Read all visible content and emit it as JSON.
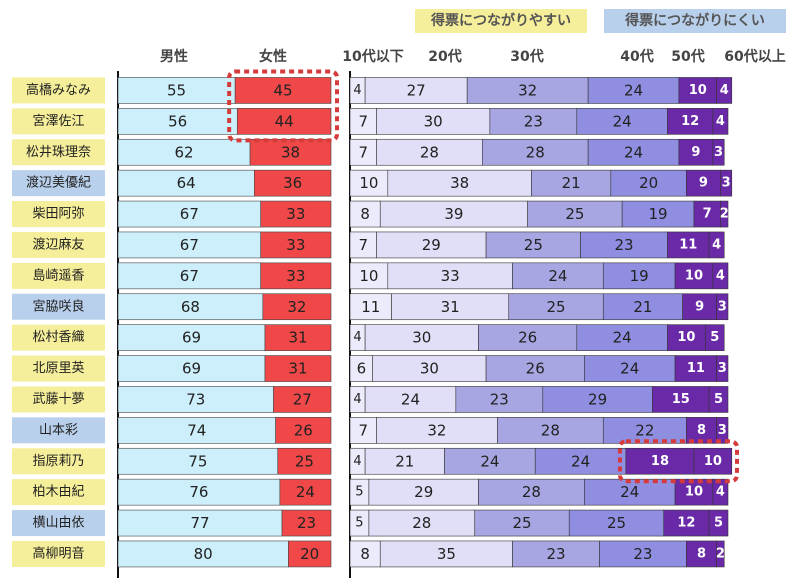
{
  "legend": {
    "easy": "得票につながりやすい",
    "hard": "得票につながりにくい",
    "colors": {
      "easy": "#f5ee9a",
      "hard": "#b8d0ec"
    }
  },
  "chart_data": {
    "type": "bar",
    "gender_headers": [
      "男性",
      "女性"
    ],
    "age_headers": [
      "10代以下",
      "20代",
      "30代",
      "40代",
      "50代",
      "60代以上"
    ],
    "categories": [
      "高橋みなみ",
      "宮澤佐江",
      "松井珠理奈",
      "渡辺美優紀",
      "柴田阿弥",
      "渡辺麻友",
      "島崎遥香",
      "宮脇咲良",
      "松村香織",
      "北原里英",
      "武藤十夢",
      "山本彩",
      "指原莉乃",
      "柏木由紀",
      "横山由依",
      "高柳明音"
    ],
    "name_highlight": [
      "easy",
      "easy",
      "easy",
      "hard",
      "easy",
      "easy",
      "easy",
      "hard",
      "easy",
      "easy",
      "easy",
      "hard",
      "easy",
      "easy",
      "hard",
      "easy"
    ],
    "gender_series": [
      {
        "name": "男性",
        "values": [
          55,
          56,
          62,
          64,
          67,
          67,
          67,
          68,
          69,
          69,
          73,
          74,
          75,
          76,
          77,
          80
        ]
      },
      {
        "name": "女性",
        "values": [
          45,
          44,
          38,
          36,
          33,
          33,
          33,
          32,
          31,
          31,
          27,
          26,
          25,
          24,
          23,
          20
        ]
      }
    ],
    "age_series": [
      {
        "name": "10代以下",
        "values": [
          4,
          7,
          7,
          10,
          8,
          7,
          10,
          11,
          4,
          6,
          4,
          7,
          4,
          5,
          5,
          8
        ]
      },
      {
        "name": "20代",
        "values": [
          27,
          30,
          28,
          38,
          39,
          29,
          33,
          31,
          30,
          30,
          24,
          32,
          21,
          29,
          28,
          35
        ]
      },
      {
        "name": "30代",
        "values": [
          32,
          23,
          28,
          21,
          25,
          25,
          24,
          25,
          26,
          26,
          23,
          28,
          24,
          28,
          25,
          23
        ]
      },
      {
        "name": "40代",
        "values": [
          24,
          24,
          24,
          20,
          19,
          23,
          19,
          21,
          24,
          24,
          29,
          22,
          24,
          24,
          25,
          23
        ]
      },
      {
        "name": "50代",
        "values": [
          10,
          12,
          9,
          9,
          7,
          11,
          10,
          9,
          10,
          11,
          15,
          8,
          18,
          10,
          12,
          8
        ]
      },
      {
        "name": "60代以上",
        "values": [
          4,
          4,
          3,
          3,
          2,
          4,
          4,
          3,
          5,
          3,
          5,
          3,
          10,
          4,
          5,
          2
        ]
      }
    ],
    "highlights": [
      {
        "group": "女性",
        "rows": [
          "高橋みなみ",
          "宮澤佐江"
        ]
      },
      {
        "group": "50代・60代以上",
        "rows": [
          "指原莉乃"
        ]
      }
    ],
    "colors": {
      "male": "#cdeefb",
      "female": "#f04848",
      "age": [
        "#ecebfb",
        "#e0dff7",
        "#a7a6e2",
        "#8f8ee0",
        "#6a2aa8",
        "#6a2aa8"
      ],
      "highlight": "#d63b3b"
    }
  }
}
